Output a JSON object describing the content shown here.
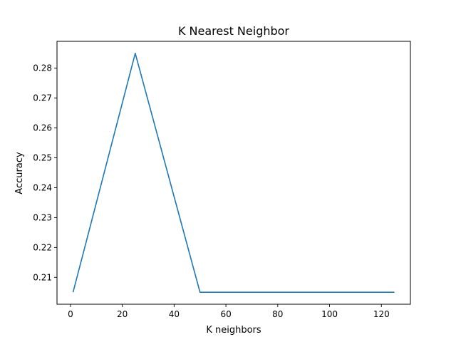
{
  "chart_data": {
    "type": "line",
    "title": "K Nearest Neighbor",
    "xlabel": "K neighbors",
    "ylabel": "Accuracy",
    "xlim": [
      -5.2,
      131.2
    ],
    "ylim": [
      0.201,
      0.289
    ],
    "x_ticks": [
      0,
      20,
      40,
      60,
      80,
      100,
      120
    ],
    "x_tick_labels": [
      "0",
      "20",
      "40",
      "60",
      "80",
      "100",
      "120"
    ],
    "y_ticks": [
      0.21,
      0.22,
      0.23,
      0.24,
      0.25,
      0.26,
      0.27,
      0.28
    ],
    "y_tick_labels": [
      "0.21",
      "0.22",
      "0.23",
      "0.24",
      "0.25",
      "0.26",
      "0.27",
      "0.28"
    ],
    "grid": false,
    "series": [
      {
        "color": "#1f77b4",
        "x": [
          1,
          25,
          50,
          75,
          100,
          125
        ],
        "y": [
          0.205,
          0.285,
          0.205,
          0.205,
          0.205,
          0.205
        ]
      }
    ]
  }
}
